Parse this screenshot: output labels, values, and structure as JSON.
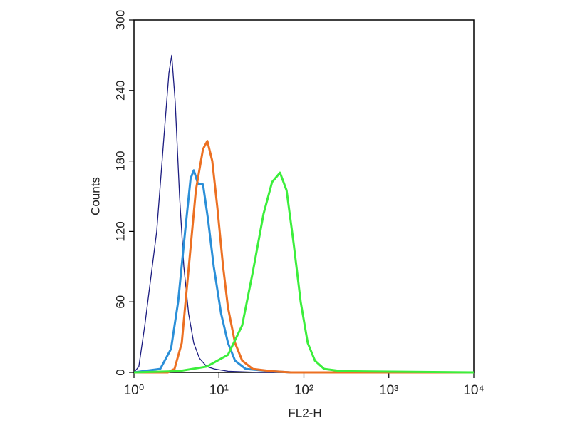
{
  "chart_data": {
    "type": "line",
    "xlabel": "FL2-H",
    "ylabel": "Counts",
    "xscale": "log",
    "xlim": [
      1,
      10000
    ],
    "ylim": [
      0,
      300
    ],
    "xticks": [
      {
        "value": 1,
        "label": "10⁰"
      },
      {
        "value": 10,
        "label": "10¹"
      },
      {
        "value": 100,
        "label": "10²"
      },
      {
        "value": 1000,
        "label": "10³"
      },
      {
        "value": 10000,
        "label": "10⁴"
      }
    ],
    "yticks": [
      0,
      60,
      120,
      180,
      240,
      300
    ],
    "series": [
      {
        "color": "#1c1c80",
        "x": [
          1,
          1.14,
          1.34,
          1.85,
          2.25,
          2.58,
          2.78,
          3.06,
          3.44,
          3.86,
          4.4,
          5.05,
          5.9,
          7.2,
          8.8,
          12.8,
          30,
          10000
        ],
        "values": [
          0,
          5,
          40,
          120,
          200,
          255,
          270,
          230,
          150,
          90,
          50,
          25,
          12,
          5,
          3,
          1,
          0,
          0
        ]
      },
      {
        "color": "#2b8fd8",
        "x": [
          1,
          2.04,
          2.73,
          3.31,
          4.0,
          4.64,
          5.06,
          5.7,
          6.5,
          7.45,
          8.7,
          10.6,
          12.8,
          15.5,
          20.6,
          42,
          70,
          10000
        ],
        "values": [
          0,
          3,
          20,
          60,
          120,
          165,
          172,
          160,
          160,
          130,
          90,
          50,
          25,
          10,
          3,
          1,
          0,
          0
        ]
      },
      {
        "color": "#ec7022",
        "x": [
          1,
          2.5,
          3.0,
          3.65,
          4.42,
          5.35,
          6.5,
          7.3,
          8.35,
          9.6,
          11.2,
          12.8,
          15.5,
          18.8,
          25,
          42,
          70,
          10000
        ],
        "values": [
          0,
          0,
          3,
          25,
          90,
          155,
          190,
          197,
          180,
          140,
          90,
          55,
          25,
          10,
          3,
          1,
          0,
          0
        ]
      },
      {
        "color": "#3cee3c",
        "x": [
          1,
          3.3,
          7.2,
          12.8,
          18.8,
          25,
          33.5,
          42.3,
          52.4,
          62.5,
          75.7,
          91.7,
          111,
          135,
          173,
          280,
          10000
        ],
        "values": [
          0,
          1,
          5,
          15,
          40,
          85,
          135,
          162,
          170,
          155,
          110,
          60,
          25,
          10,
          3,
          1,
          0
        ]
      }
    ]
  }
}
